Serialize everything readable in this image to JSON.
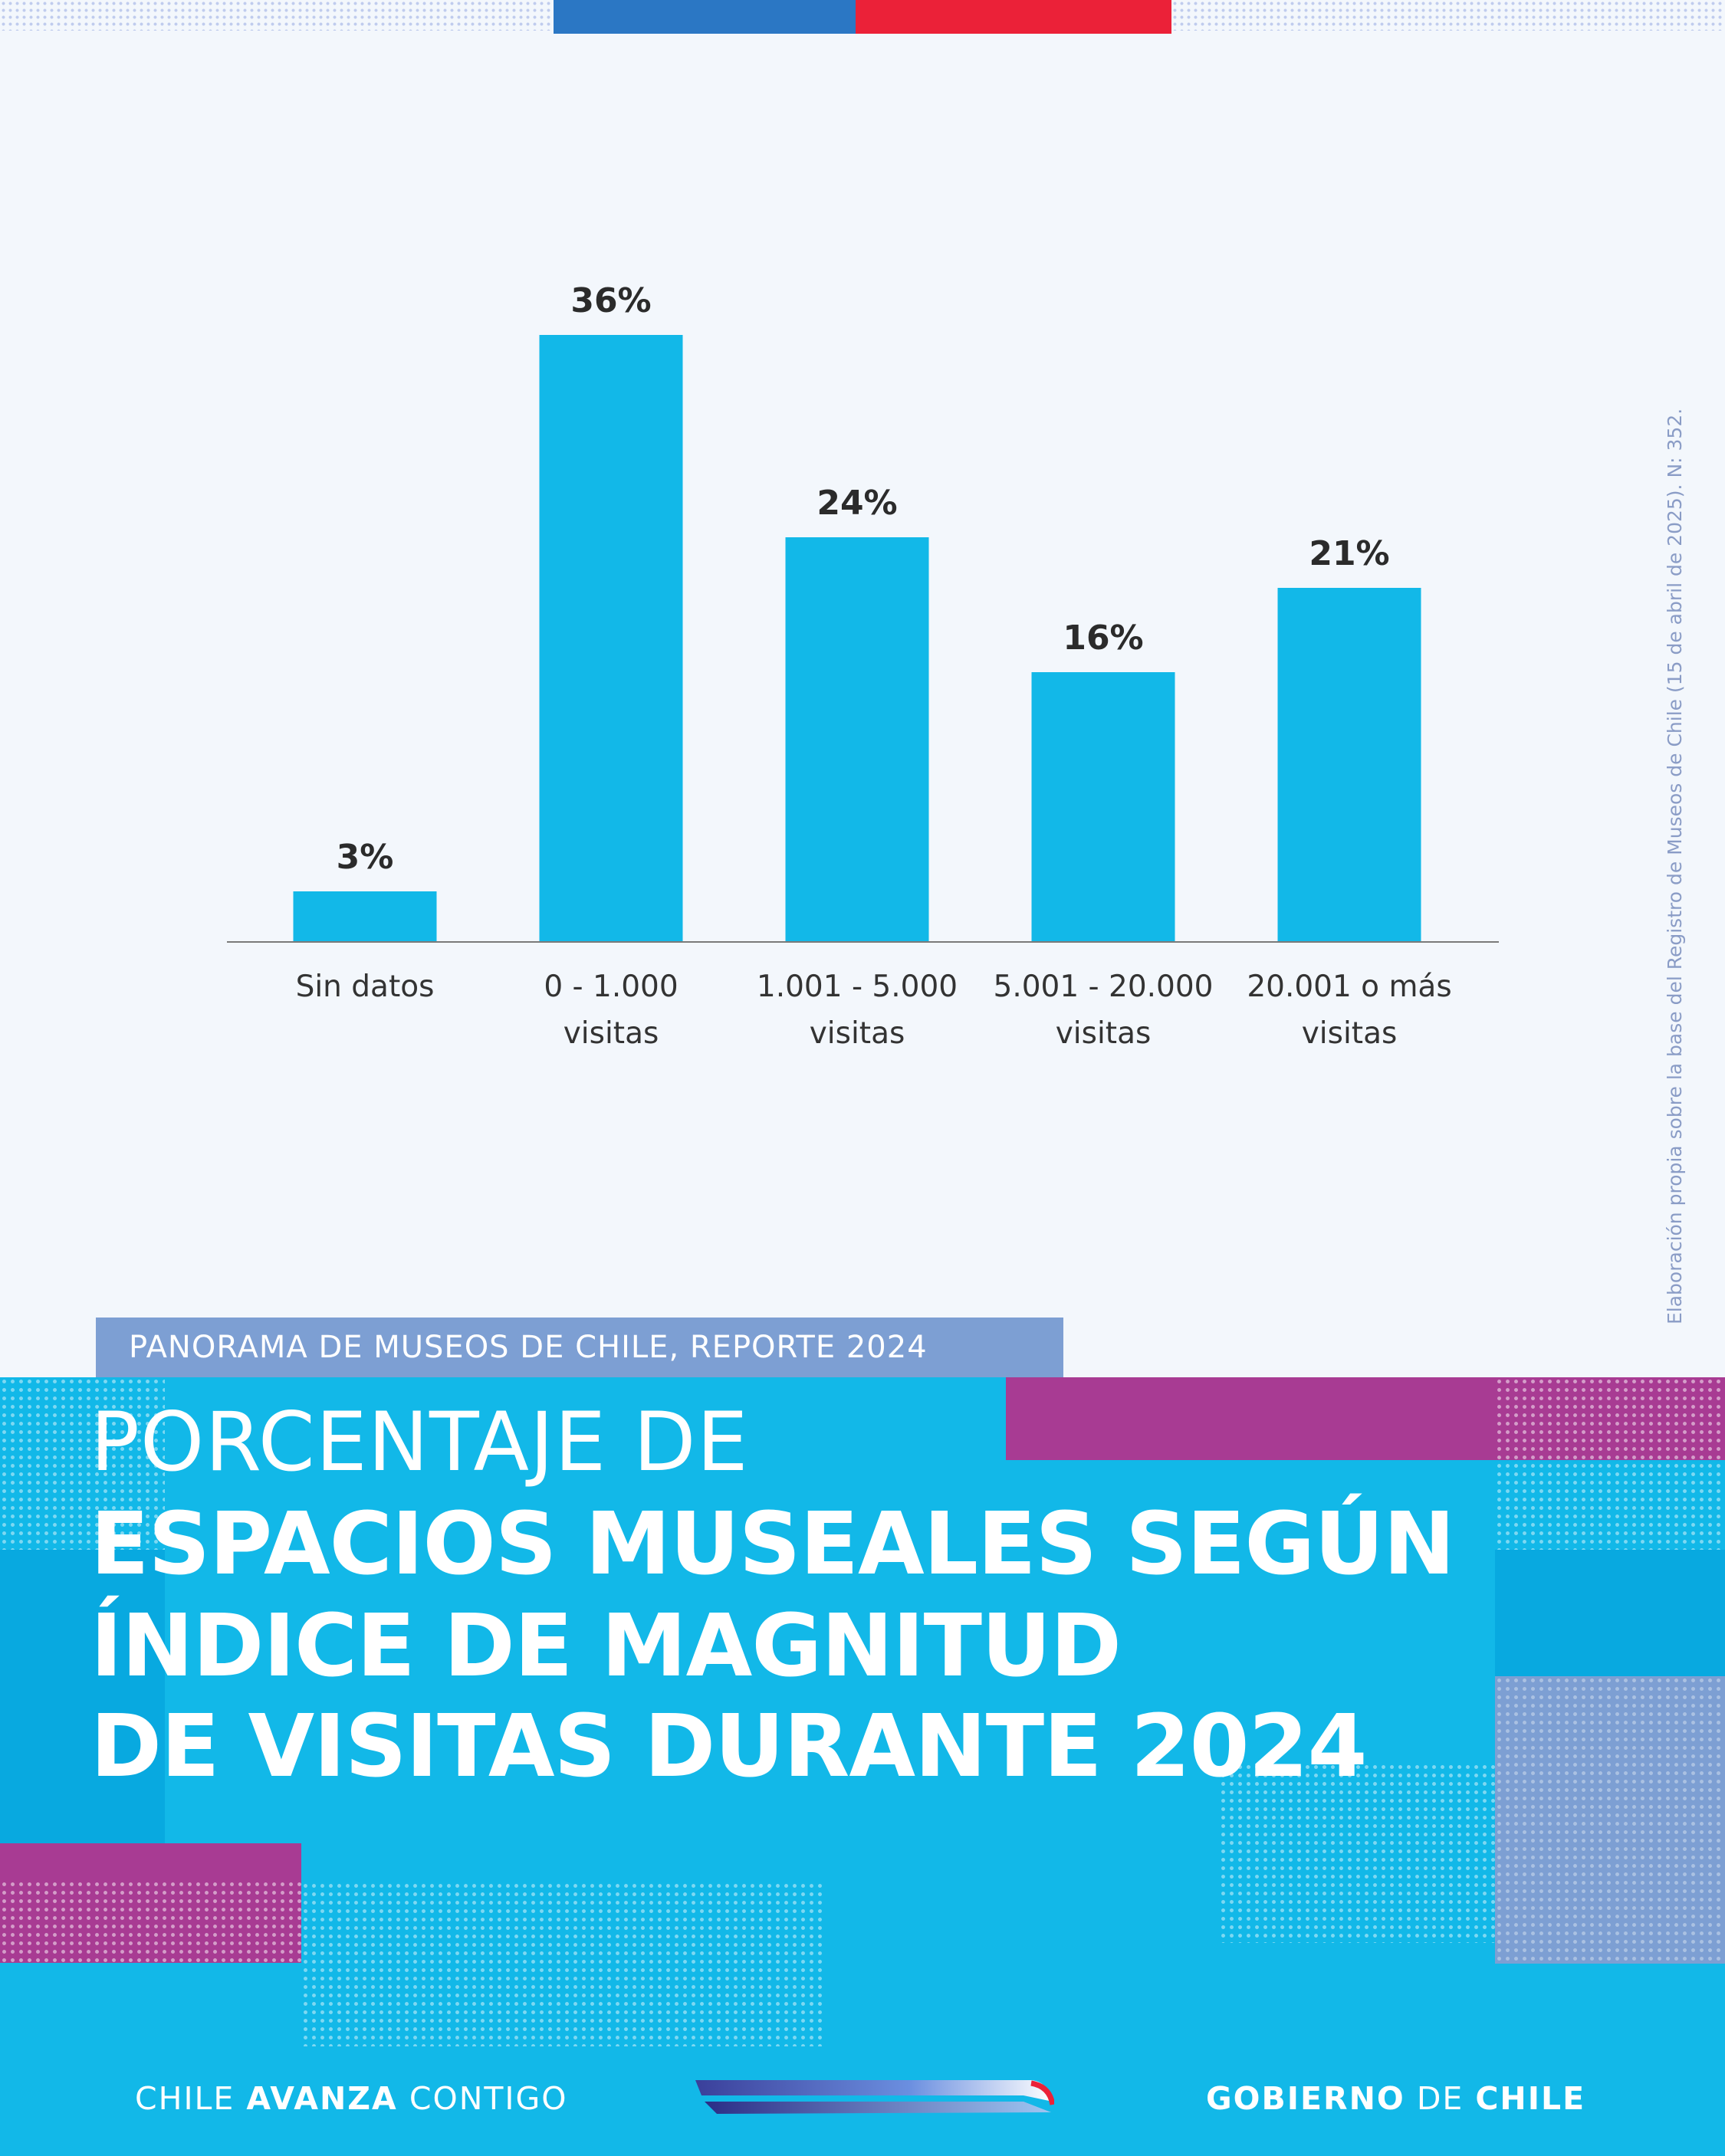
{
  "colors": {
    "bar": "#12b8e8",
    "blue_band": "#12b8e8",
    "purple": "#a83b93",
    "lavender": "#7d9fd3",
    "flag_blue": "#2b77c4",
    "flag_red": "#eb2138"
  },
  "source_note": "Elaboración propia sobre la base del Registro de Museos de Chile (15 de abril de 2025). N: 352.",
  "tag": "PANORAMA DE MUSEOS DE CHILE, REPORTE 2024",
  "title": {
    "line1": "PORCENTAJE DE",
    "line2": "ESPACIOS MUSEALES SEGÚN",
    "line3": "ÍNDICE DE MAGNITUD",
    "line4": "DE VISITAS DURANTE 2024"
  },
  "footer": {
    "left_a": "CHILE",
    "left_b": "AVANZA",
    "left_c": "CONTIGO",
    "right_a": "GOBIERNO",
    "right_b": "DE",
    "right_c": "CHILE"
  },
  "chart_data": {
    "type": "bar",
    "categories": [
      [
        "Sin datos"
      ],
      [
        "0 - 1.000",
        "visitas"
      ],
      [
        "1.001 - 5.000",
        "visitas"
      ],
      [
        "5.001 - 20.000",
        "visitas"
      ],
      [
        "20.001 o más",
        "visitas"
      ]
    ],
    "values": [
      3,
      36,
      24,
      16,
      21
    ],
    "data_labels": [
      "3%",
      "36%",
      "24%",
      "16%",
      "21%"
    ],
    "unit": "%",
    "ylim": [
      0,
      36
    ],
    "grid": false,
    "legend": "none"
  }
}
